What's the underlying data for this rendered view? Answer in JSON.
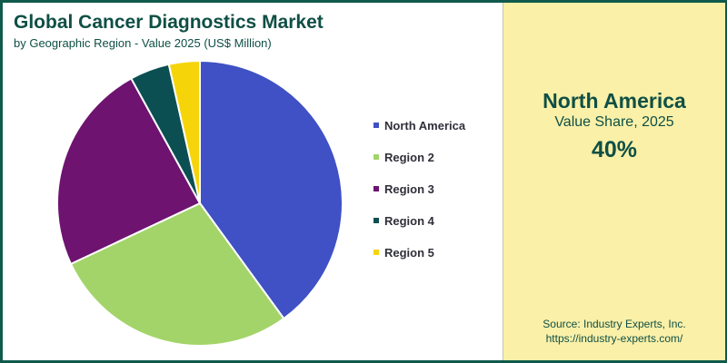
{
  "header": {
    "title": "Global Cancer Diagnostics Market",
    "subtitle": "by Geographic Region - Value 2025 (US$ Million)"
  },
  "highlight": {
    "region": "North America",
    "label": "Value Share, 2025",
    "value": "40%"
  },
  "source": {
    "line1": "Source: Industry Experts, Inc.",
    "line2": "https://industry-experts.com/"
  },
  "colors": {
    "frame": "#0f5a4c",
    "text": "#0f4f45",
    "panel": "#faf0a8"
  },
  "chart_data": {
    "type": "pie",
    "title": "Global Cancer Diagnostics Market",
    "subtitle": "by Geographic Region - Value 2025 (US$ Million)",
    "legend_position": "right",
    "categories": [
      "North America",
      "Region 2",
      "Region 3",
      "Region 4",
      "Region 5"
    ],
    "values": [
      40,
      28,
      24,
      4.5,
      3.5
    ],
    "colors": [
      "#3f51c4",
      "#a3d46a",
      "#6e1370",
      "#0b4f52",
      "#f5d50a"
    ]
  }
}
